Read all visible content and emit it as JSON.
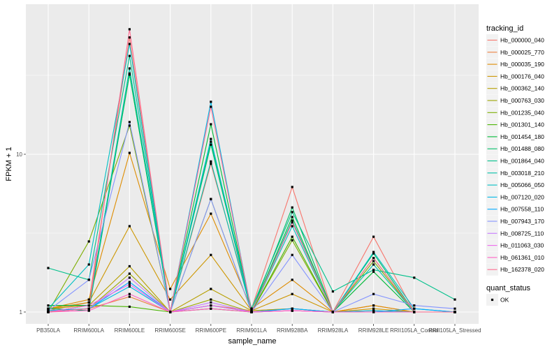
{
  "chart_data": {
    "type": "line",
    "xlabel": "sample_name",
    "ylabel": "FPKM + 1",
    "y_scale": "log10",
    "y_ticks": [
      1,
      10
    ],
    "y_tick_labels": [
      "1",
      "10"
    ],
    "grid": true,
    "legend_position": "right",
    "legend_title": "tracking_id",
    "shape_legend_title": "quant_status",
    "shape_legend_items": [
      "OK"
    ],
    "categories": [
      "PB350LA",
      "RRIM600LA",
      "RRIM600LE",
      "RRIM600SE",
      "RRIM600PE",
      "RRIM901LA",
      "RRIM928BA",
      "RRIM928LA",
      "RRIM928LE",
      "RRII105LA_Control",
      "RRII105LA_Stressed"
    ],
    "series": [
      {
        "name": "Hb_000000_040",
        "color": "#F8766D",
        "values": [
          1.02,
          1.15,
          55,
          1.0,
          8.7,
          1.05,
          6.2,
          1.0,
          3.0,
          1.0,
          1.0
        ]
      },
      {
        "name": "Hb_000025_770",
        "color": "#ED813E",
        "values": [
          1.02,
          1.05,
          1.25,
          1.0,
          1.1,
          1.02,
          1.05,
          1.0,
          1.1,
          1.0,
          1.0
        ]
      },
      {
        "name": "Hb_000035_190",
        "color": "#DE8C00",
        "values": [
          1.05,
          1.2,
          10.2,
          1.4,
          4.2,
          1.05,
          1.6,
          1.0,
          1.1,
          1.0,
          1.0
        ]
      },
      {
        "name": "Hb_000176_040",
        "color": "#CD9600",
        "values": [
          1.05,
          1.15,
          3.5,
          1.2,
          2.3,
          1.02,
          1.3,
          1.0,
          1.05,
          1.0,
          1.0
        ]
      },
      {
        "name": "Hb_000362_140",
        "color": "#B79F00",
        "values": [
          1.05,
          1.1,
          1.95,
          1.0,
          1.4,
          1.02,
          1.05,
          1.0,
          1.02,
          1.0,
          1.0
        ]
      },
      {
        "name": "Hb_000763_030",
        "color": "#9DA700",
        "values": [
          1.0,
          1.05,
          1.75,
          1.0,
          1.2,
          1.0,
          1.02,
          1.0,
          1.0,
          1.0,
          1.0
        ]
      },
      {
        "name": "Hb_001235_040",
        "color": "#7CAE00",
        "values": [
          1.0,
          2.8,
          15.2,
          1.0,
          5.2,
          1.0,
          2.85,
          1.0,
          2.1,
          1.0,
          1.0
        ]
      },
      {
        "name": "Hb_001301_140",
        "color": "#49B500",
        "values": [
          1.0,
          1.1,
          1.08,
          1.0,
          1.05,
          1.0,
          3.0,
          1.0,
          2.2,
          1.0,
          1.0
        ]
      },
      {
        "name": "Hb_001454_180",
        "color": "#00BA38",
        "values": [
          1.1,
          1.1,
          32,
          1.0,
          15.5,
          1.0,
          4.0,
          1.0,
          1.8,
          1.0,
          1.0
        ]
      },
      {
        "name": "Hb_001488_080",
        "color": "#00BE67",
        "values": [
          1.05,
          1.02,
          32.5,
          1.0,
          11.5,
          1.0,
          4.6,
          1.0,
          2.35,
          1.0,
          1.0
        ]
      },
      {
        "name": "Hb_001864_040",
        "color": "#00C08B",
        "values": [
          1.9,
          1.6,
          42,
          1.0,
          12,
          1.05,
          4.3,
          1.35,
          1.85,
          1.65,
          1.2
        ]
      },
      {
        "name": "Hb_003018_210",
        "color": "#00C1A9",
        "values": [
          1.0,
          1.05,
          35,
          1.0,
          9.0,
          1.0,
          3.8,
          1.0,
          2.0,
          1.0,
          1.0
        ]
      },
      {
        "name": "Hb_005066_050",
        "color": "#00BFC4",
        "values": [
          1.05,
          2.0,
          50,
          1.0,
          12.5,
          1.0,
          3.5,
          1.0,
          2.4,
          1.05,
          1.0
        ]
      },
      {
        "name": "Hb_007120_020",
        "color": "#00B8E7",
        "values": [
          1.02,
          1.05,
          1.45,
          1.0,
          21.5,
          1.0,
          1.05,
          1.0,
          1.02,
          1.0,
          1.0
        ]
      },
      {
        "name": "Hb_007558_110",
        "color": "#00A9FF",
        "values": [
          1.0,
          1.05,
          1.55,
          1.0,
          1.1,
          1.0,
          1.05,
          1.0,
          1.0,
          1.05,
          1.0
        ]
      },
      {
        "name": "Hb_007943_170",
        "color": "#8494FF",
        "values": [
          1.02,
          1.6,
          16,
          1.0,
          5.2,
          1.0,
          2.3,
          1.0,
          1.3,
          1.1,
          1.05
        ]
      },
      {
        "name": "Hb_008725_110",
        "color": "#C77CFF",
        "values": [
          1.0,
          1.05,
          1.65,
          1.0,
          1.15,
          1.0,
          1.02,
          1.0,
          1.0,
          1.0,
          1.0
        ]
      },
      {
        "name": "Hb_011063_030",
        "color": "#ED68ED",
        "values": [
          1.0,
          1.1,
          1.5,
          1.0,
          1.1,
          1.0,
          1.02,
          1.0,
          1.0,
          1.0,
          1.0
        ]
      },
      {
        "name": "Hb_061361_010",
        "color": "#FF61C3",
        "values": [
          1.0,
          1.02,
          1.3,
          1.0,
          1.05,
          1.0,
          1.02,
          1.0,
          1.0,
          1.0,
          1.0
        ]
      },
      {
        "name": "Hb_162378_020",
        "color": "#FF6C91",
        "values": [
          1.0,
          1.05,
          62,
          1.0,
          20,
          1.0,
          3.7,
          1.0,
          2.2,
          1.0,
          1.0
        ]
      }
    ]
  }
}
